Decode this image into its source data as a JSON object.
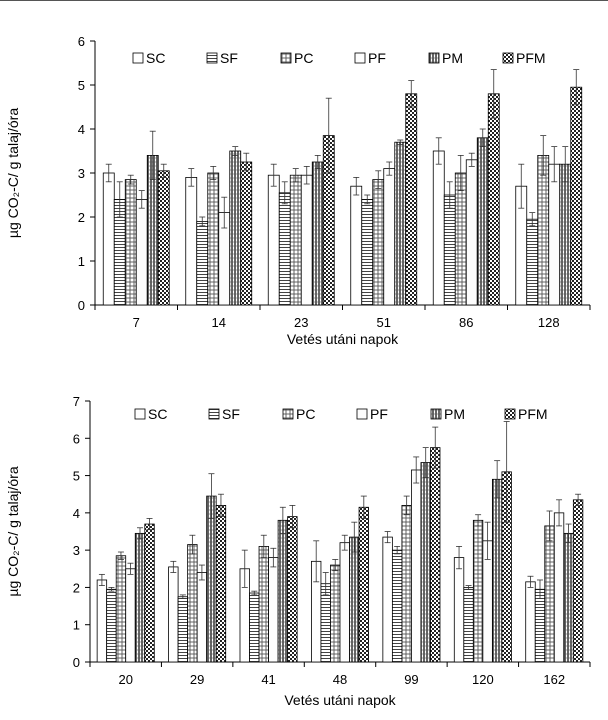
{
  "series_styles": [
    {
      "name": "SC",
      "pattern": "solid-white"
    },
    {
      "name": "SF",
      "pattern": "horizontal-lines"
    },
    {
      "name": "PC",
      "pattern": "grid"
    },
    {
      "name": "PF",
      "pattern": "light-white"
    },
    {
      "name": "PM",
      "pattern": "dense-vertical"
    },
    {
      "name": "PFM",
      "pattern": "checker-dark"
    }
  ],
  "chart_data": [
    {
      "type": "bar",
      "ylabel": "µg CO₂-C/ g talaj/óra",
      "xlabel": "Vetés utáni napok",
      "ylim": [
        0,
        6
      ],
      "yticks": [
        0,
        1,
        2,
        3,
        4,
        5,
        6
      ],
      "legend_position": "top",
      "categories": [
        "7",
        "14",
        "23",
        "51",
        "86",
        "128"
      ],
      "series": [
        {
          "name": "SC",
          "values": [
            3.0,
            2.9,
            2.95,
            2.7,
            3.5,
            2.7
          ],
          "errors": [
            0.2,
            0.2,
            0.25,
            0.2,
            0.3,
            0.5
          ]
        },
        {
          "name": "SF",
          "values": [
            2.4,
            1.9,
            2.55,
            2.4,
            2.5,
            1.95
          ],
          "errors": [
            0.4,
            0.1,
            0.25,
            0.1,
            0.3,
            0.15
          ]
        },
        {
          "name": "PC",
          "values": [
            2.85,
            3.0,
            2.95,
            2.85,
            3.0,
            3.4
          ],
          "errors": [
            0.1,
            0.15,
            0.15,
            0.2,
            0.4,
            0.45
          ]
        },
        {
          "name": "PF",
          "values": [
            2.4,
            2.1,
            2.95,
            3.1,
            3.3,
            3.2
          ],
          "errors": [
            0.2,
            0.35,
            0.2,
            0.15,
            0.15,
            0.4
          ]
        },
        {
          "name": "PM",
          "values": [
            3.4,
            3.5,
            3.25,
            3.7,
            3.8,
            3.2
          ],
          "errors": [
            0.55,
            0.1,
            0.15,
            0.05,
            0.2,
            0.4
          ]
        },
        {
          "name": "PFM",
          "values": [
            3.05,
            3.25,
            3.85,
            4.8,
            4.8,
            4.95
          ],
          "errors": [
            0.15,
            0.2,
            0.85,
            0.3,
            0.55,
            0.4
          ]
        }
      ]
    },
    {
      "type": "bar",
      "ylabel": "µg CO₂-C/ g talaj/óra",
      "xlabel": "Vetés utáni napok",
      "ylim": [
        0,
        7
      ],
      "yticks": [
        0,
        1,
        2,
        3,
        4,
        5,
        6,
        7
      ],
      "legend_position": "top",
      "categories": [
        "20",
        "29",
        "41",
        "48",
        "99",
        "120",
        "162"
      ],
      "series": [
        {
          "name": "SC",
          "values": [
            2.2,
            2.55,
            2.5,
            2.7,
            3.35,
            2.8,
            2.15
          ],
          "errors": [
            0.15,
            0.15,
            0.5,
            0.55,
            0.15,
            0.3,
            0.15
          ]
        },
        {
          "name": "SF",
          "values": [
            1.95,
            1.75,
            1.85,
            2.1,
            3.0,
            2.0,
            1.95
          ],
          "errors": [
            0.05,
            0.05,
            0.05,
            0.3,
            0.1,
            0.05,
            0.25
          ]
        },
        {
          "name": "PC",
          "values": [
            2.85,
            3.15,
            3.1,
            2.6,
            4.2,
            3.8,
            3.65
          ],
          "errors": [
            0.1,
            0.25,
            0.3,
            0.15,
            0.25,
            0.15,
            0.4
          ]
        },
        {
          "name": "PF",
          "values": [
            2.5,
            2.4,
            2.8,
            3.2,
            5.15,
            3.25,
            4.0
          ],
          "errors": [
            0.15,
            0.2,
            0.25,
            0.2,
            0.35,
            0.5,
            0.35
          ]
        },
        {
          "name": "PM",
          "values": [
            3.45,
            4.45,
            3.8,
            3.35,
            5.35,
            4.9,
            3.45
          ],
          "errors": [
            0.15,
            0.6,
            0.35,
            0.4,
            0.4,
            0.5,
            0.25
          ]
        },
        {
          "name": "PFM",
          "values": [
            3.7,
            4.2,
            3.9,
            4.15,
            5.75,
            5.1,
            4.35
          ],
          "errors": [
            0.15,
            0.3,
            0.3,
            0.3,
            0.55,
            1.35,
            0.15
          ]
        }
      ]
    }
  ]
}
